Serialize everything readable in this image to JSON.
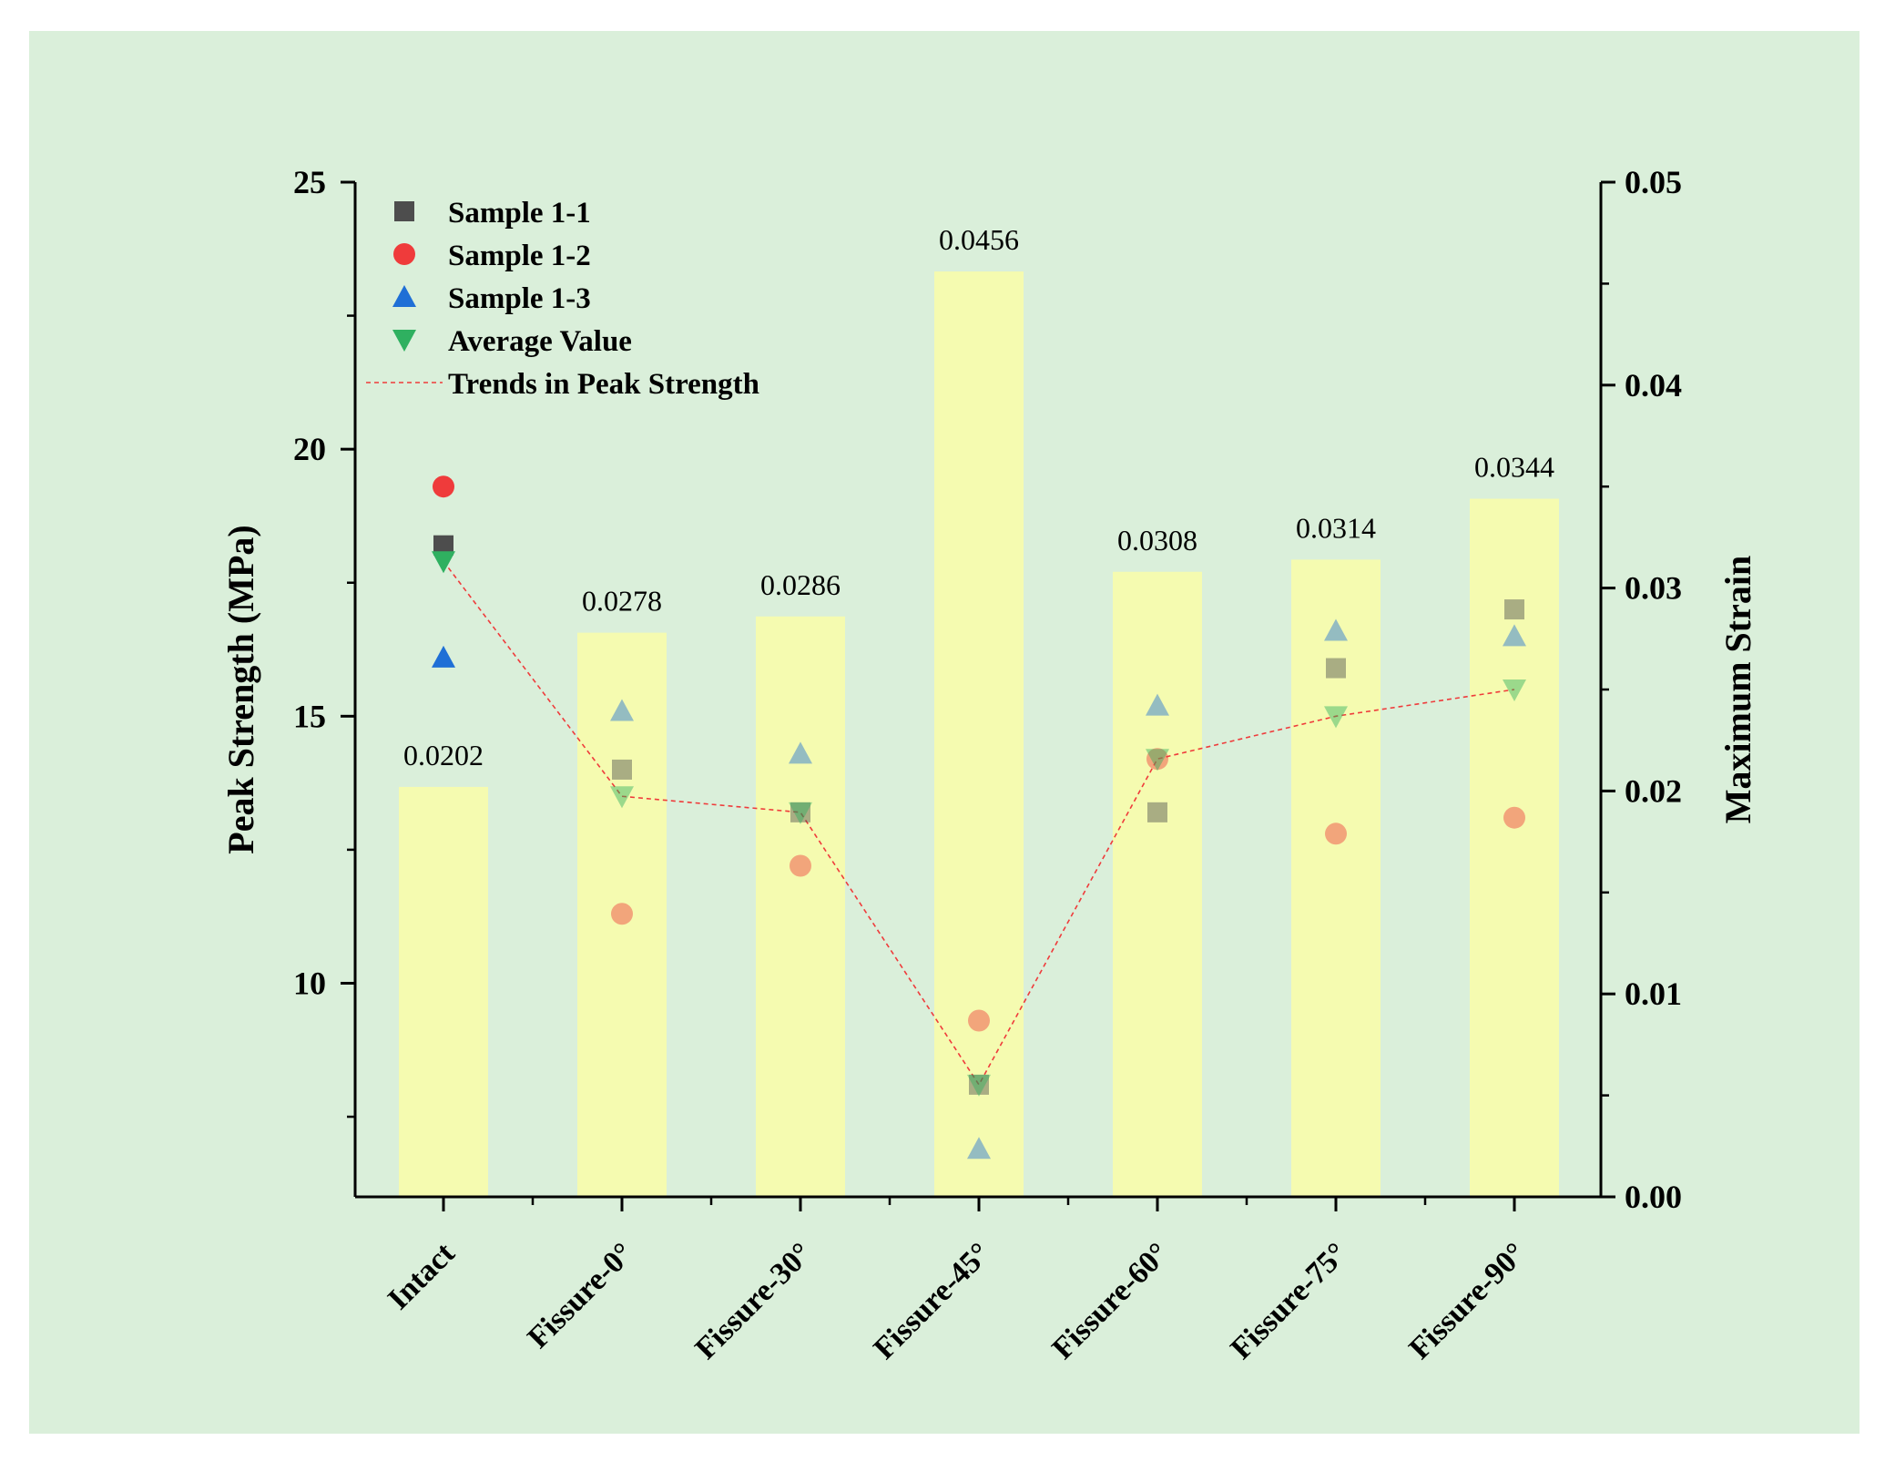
{
  "chart_data": {
    "type": "bar",
    "categories": [
      "Intact",
      "Fissure-0°",
      "Fissure-30°",
      "Fissure-45°",
      "Fissure-60°",
      "Fissure-75°",
      "Fissure-90°"
    ],
    "bar_series": {
      "name": "Maximum Strain",
      "values": [
        0.0202,
        0.0278,
        0.0286,
        0.0456,
        0.0308,
        0.0314,
        0.0344
      ],
      "labels": [
        "0.0202",
        "0.0278",
        "0.0286",
        "0.0456",
        "0.0308",
        "0.0314",
        "0.0344"
      ],
      "color": "#f5fbb0"
    },
    "scatter_series": [
      {
        "name": "Sample 1-1",
        "marker": "square",
        "color": "#4d4d4d",
        "values": [
          18.2,
          14.0,
          13.2,
          8.1,
          13.2,
          15.9,
          17.0
        ]
      },
      {
        "name": "Sample 1-2",
        "marker": "circle",
        "color": "#ef3b3b",
        "values": [
          19.3,
          11.3,
          12.2,
          9.3,
          14.2,
          12.8,
          13.1
        ]
      },
      {
        "name": "Sample 1-3",
        "marker": "triangle-up",
        "color": "#1f6fd6",
        "values": [
          16.1,
          15.1,
          14.3,
          6.9,
          15.2,
          16.6,
          16.5
        ]
      },
      {
        "name": "Average Value",
        "marker": "triangle-down",
        "color": "#2fb060",
        "values": [
          17.9,
          13.5,
          13.2,
          8.1,
          14.2,
          15.0,
          15.5
        ]
      }
    ],
    "trend": {
      "name": "Trends in Peak Strength",
      "color": "#ef3b3b",
      "style": "dashed",
      "values": [
        17.9,
        13.5,
        13.2,
        8.1,
        14.2,
        15.0,
        15.5
      ]
    },
    "left_axis": {
      "label": "Peak Strength (MPa)",
      "range": [
        6,
        25
      ],
      "ticks": [
        10,
        15,
        20,
        25
      ],
      "tick_labels": [
        "10",
        "15",
        "20",
        "25"
      ]
    },
    "right_axis": {
      "label": "Maximum Strain",
      "range": [
        0,
        0.05
      ],
      "ticks": [
        0,
        0.01,
        0.02,
        0.03,
        0.04,
        0.05
      ],
      "tick_labels": [
        "0.00",
        "0.01",
        "0.02",
        "0.03",
        "0.04",
        "0.05"
      ]
    },
    "legend": {
      "placement": "top-left",
      "entries": [
        "Sample 1-1",
        "Sample 1-2",
        "Sample 1-3",
        "Average Value",
        "Trends in Peak Strength"
      ]
    },
    "grid": false,
    "title": ""
  }
}
